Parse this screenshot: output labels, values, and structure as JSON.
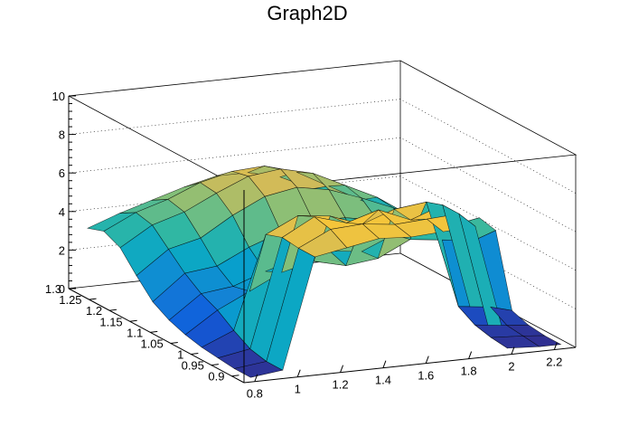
{
  "chart_data": {
    "type": "surface",
    "title": "Graph2D",
    "x_ticks": [
      "0.8",
      "1",
      "1.2",
      "1.4",
      "1.6",
      "1.8",
      "2",
      "2.2"
    ],
    "y_ticks": [
      "0.9",
      "0.95",
      "1",
      "1.05",
      "1.1",
      "1.15",
      "1.2",
      "1.25",
      "1.3"
    ],
    "z_ticks": [
      "0",
      "2",
      "4",
      "6",
      "8",
      "10"
    ],
    "x_range": [
      0.75,
      2.3
    ],
    "y_range": [
      0.87,
      1.3
    ],
    "z_range": [
      0,
      10
    ],
    "grid": true,
    "palette": [
      "#352a87",
      "#0f5cdd",
      "#1481d6",
      "#06a4ca",
      "#2eb7a4",
      "#87bf77",
      "#d1bb59",
      "#fec832",
      "#f9fb0e"
    ],
    "surface": {
      "x": [
        0.8,
        0.95,
        1.1,
        1.25,
        1.4,
        1.55,
        1.7,
        1.85,
        2.0,
        2.15,
        2.25
      ],
      "y": [
        0.88,
        0.92,
        0.96,
        1.0,
        1.04,
        1.08,
        1.12,
        1.16,
        1.2,
        1.24,
        1.28
      ],
      "z": [
        [
          0.1,
          0.3,
          6.0,
          6.3,
          6.6,
          6.5,
          6.6,
          6.7,
          0.2,
          0.1,
          0.1
        ],
        [
          0.1,
          0.3,
          6.0,
          6.8,
          6.9,
          6.7,
          6.8,
          6.9,
          0.3,
          0.2,
          0.1
        ],
        [
          0.2,
          0.5,
          6.1,
          7.0,
          6.5,
          7.0,
          6.3,
          6.9,
          0.5,
          0.3,
          0.2
        ],
        [
          0.3,
          1.0,
          5.8,
          6.6,
          6.4,
          5.8,
          6.4,
          6.6,
          1.0,
          0.8,
          0.5
        ],
        [
          0.5,
          1.6,
          2.4,
          3.2,
          3.6,
          3.2,
          3.4,
          4.2,
          4.0,
          3.8,
          4.2
        ],
        [
          0.8,
          2.0,
          2.2,
          2.8,
          3.3,
          3.5,
          3.3,
          4.0,
          4.4,
          4.2,
          4.4
        ],
        [
          1.3,
          2.6,
          2.8,
          3.6,
          4.2,
          4.6,
          4.6,
          4.3,
          4.0,
          3.7,
          3.4
        ],
        [
          2.2,
          3.4,
          3.8,
          4.8,
          5.6,
          5.9,
          5.6,
          5.0,
          4.3,
          3.5,
          3.0
        ],
        [
          3.2,
          4.2,
          4.7,
          5.5,
          6.2,
          6.4,
          6.0,
          5.2,
          4.4,
          3.3,
          2.6
        ],
        [
          3.6,
          4.4,
          4.9,
          5.6,
          6.0,
          6.1,
          5.6,
          4.7,
          3.8,
          2.9,
          2.3
        ],
        [
          3.3,
          3.9,
          4.4,
          4.9,
          5.3,
          5.3,
          4.9,
          4.1,
          3.2,
          2.4,
          1.9
        ]
      ]
    }
  }
}
